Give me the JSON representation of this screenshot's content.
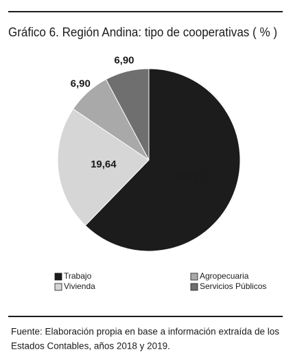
{
  "chart_data": {
    "type": "pie",
    "title": "Gráfico 6. Región Andina: tipo de cooperativas ( % )",
    "categories": [
      "Trabajo",
      "Vivienda",
      "Agropecuaria",
      "Servicios Públicos"
    ],
    "values": [
      55.17,
      19.64,
      6.9,
      6.9
    ],
    "value_labels": [
      "55,17",
      "19,64",
      "6,90",
      "6,90"
    ],
    "colors": [
      "#1c1c1c",
      "#d6d6d6",
      "#a9a9a9",
      "#6f6f6f"
    ],
    "source_lines": [
      "Fuente: Elaboración propia en base a información extraída de los",
      "Estados Contables, años 2018 y 2019."
    ]
  }
}
